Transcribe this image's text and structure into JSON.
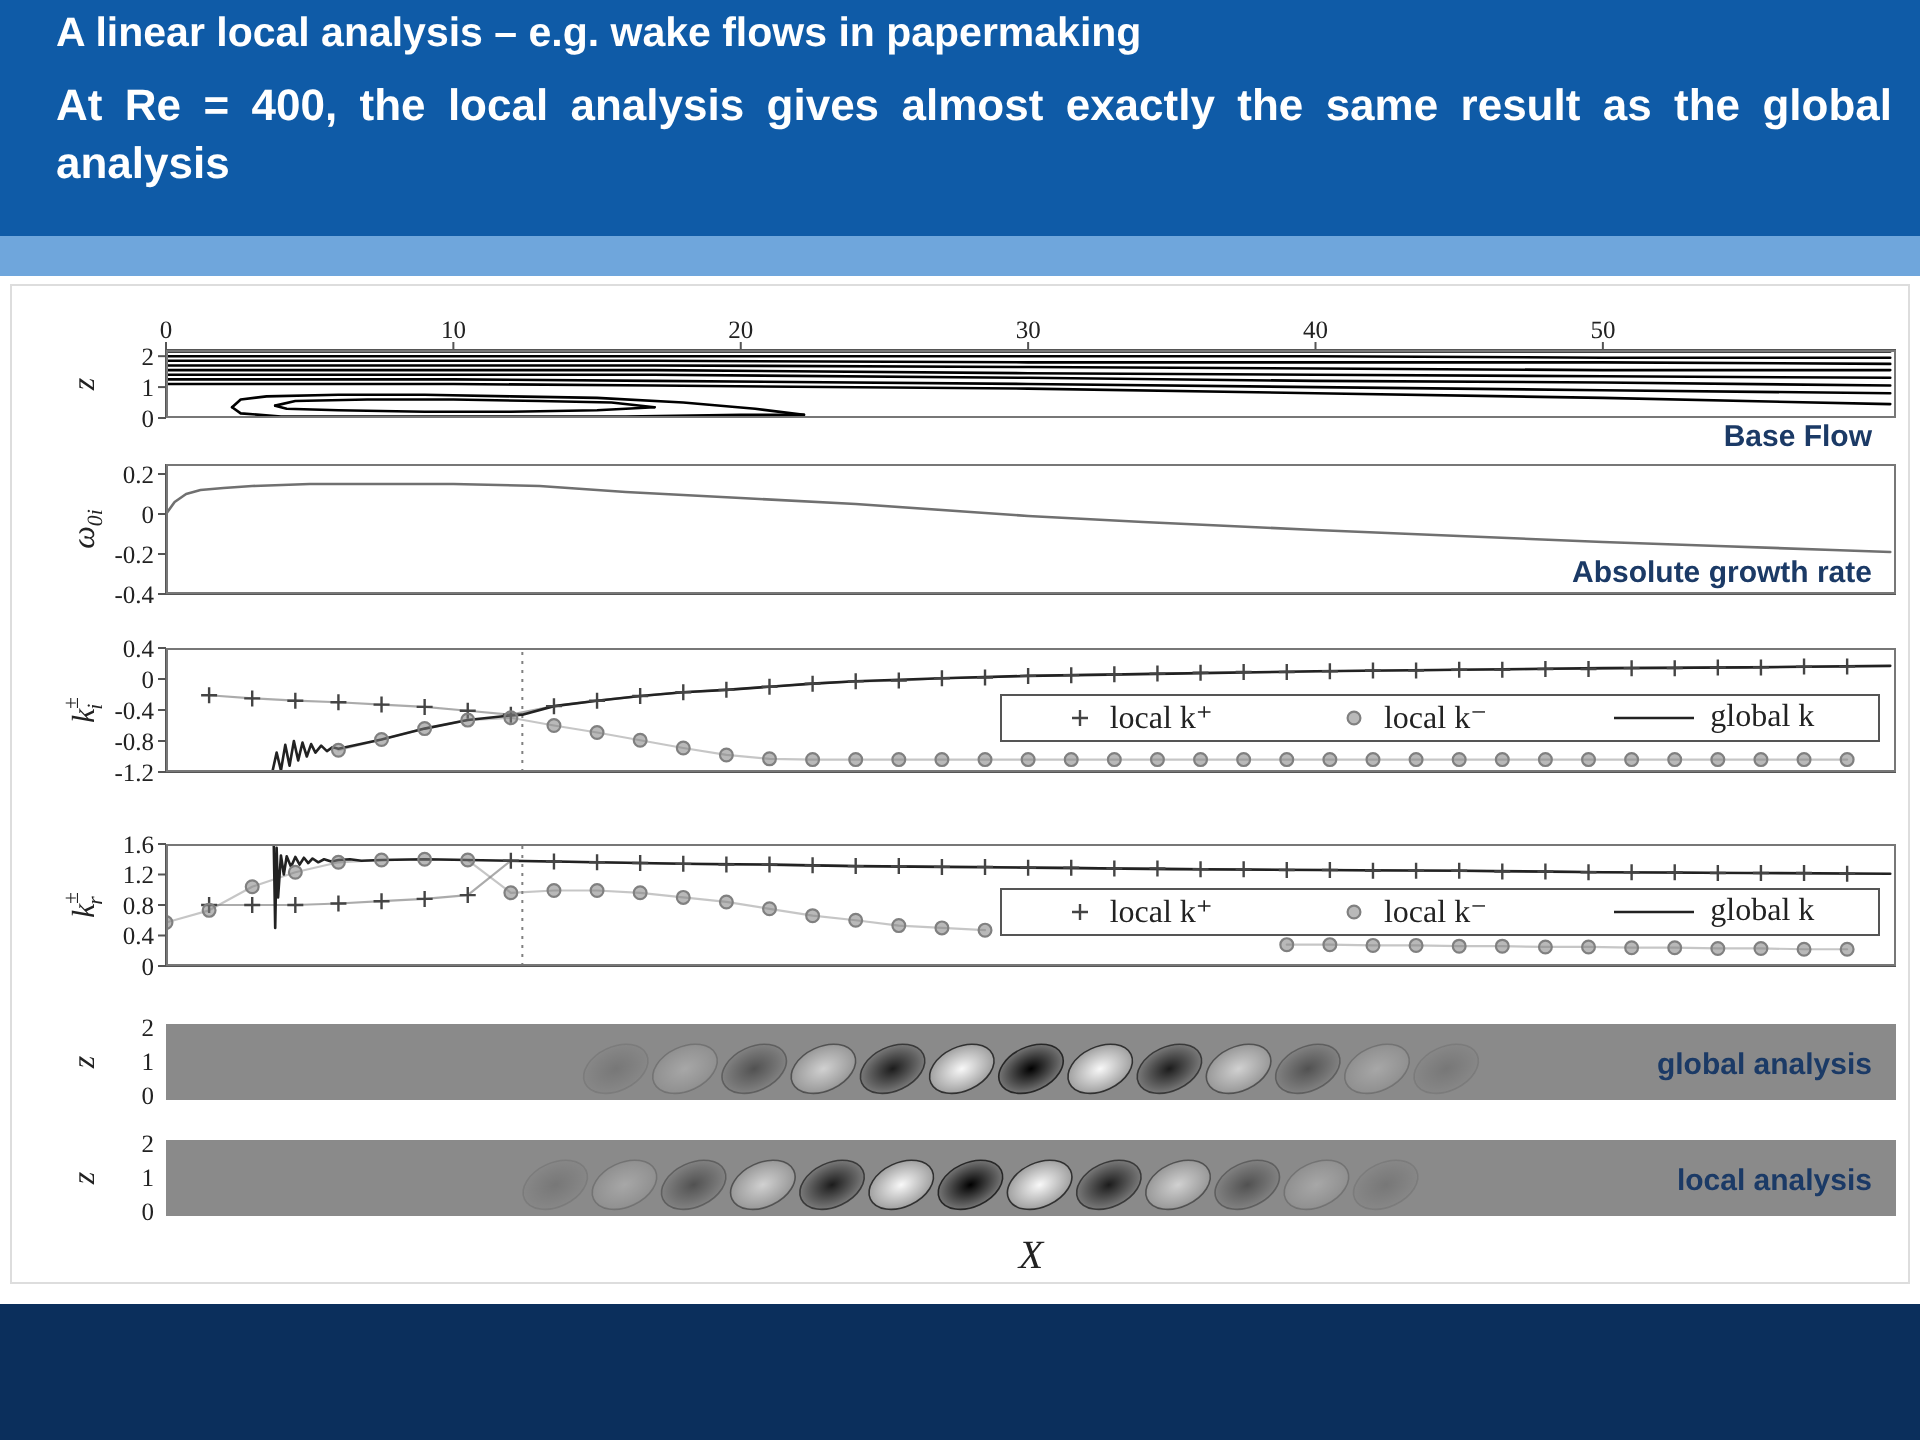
{
  "chart_data": [
    {
      "type": "line",
      "title": "A linear local analysis – e.g. wake flows in papermaking",
      "subtitle": "At Re = 400, the local analysis gives almost exactly the same result as the global analysis",
      "annotations": [
        "Base Flow"
      ],
      "ylabel": "z",
      "xlim": [
        0,
        60.2
      ],
      "xticks": [
        0,
        10,
        20,
        30,
        40,
        50
      ],
      "ylim": [
        0,
        2.2
      ],
      "yticks": [
        0,
        1,
        2
      ],
      "series": [
        {
          "color": "#000000",
          "x": [
            0,
            10,
            17,
            30,
            40,
            50,
            60
          ],
          "values": [
            1.1,
            1.1,
            1.05,
            0.95,
            0.8,
            0.65,
            0.45
          ]
        },
        {
          "color": "#000000",
          "x": [
            0,
            10,
            17,
            30,
            40,
            50,
            60
          ],
          "values": [
            1.25,
            1.25,
            1.2,
            1.1,
            1.0,
            0.9,
            0.8
          ]
        },
        {
          "color": "#000000",
          "x": [
            0,
            10,
            17,
            30,
            40,
            50,
            60
          ],
          "values": [
            1.4,
            1.4,
            1.4,
            1.3,
            1.2,
            1.15,
            1.05
          ]
        },
        {
          "color": "#000000",
          "x": [
            0,
            10,
            17,
            30,
            40,
            50,
            60
          ],
          "values": [
            1.55,
            1.55,
            1.55,
            1.45,
            1.4,
            1.35,
            1.3
          ]
        },
        {
          "color": "#000000",
          "x": [
            0,
            10,
            17,
            30,
            40,
            50,
            60
          ],
          "values": [
            1.7,
            1.7,
            1.7,
            1.65,
            1.6,
            1.55,
            1.55
          ]
        },
        {
          "color": "#000000",
          "x": [
            0,
            10,
            17,
            30,
            40,
            50,
            60
          ],
          "values": [
            1.85,
            1.85,
            1.85,
            1.8,
            1.8,
            1.8,
            1.75
          ]
        },
        {
          "color": "#000000",
          "x": [
            0,
            10,
            17,
            30,
            40,
            50,
            60
          ],
          "values": [
            2.0,
            2.0,
            2.0,
            2.0,
            2.0,
            1.95,
            1.95
          ]
        },
        {
          "color": "#000000",
          "x": [
            0,
            10,
            17,
            30,
            40,
            50,
            60
          ],
          "values": [
            2.15,
            2.15,
            2.15,
            2.15,
            2.15,
            2.15,
            2.15
          ]
        },
        {
          "color": "#000000",
          "x": [
            2.3,
            2.6,
            3.5,
            6,
            9,
            12,
            15,
            18,
            20.5,
            22.2
          ],
          "values": [
            0.35,
            0.6,
            0.7,
            0.75,
            0.75,
            0.7,
            0.65,
            0.5,
            0.3,
            0.1
          ]
        },
        {
          "color": "#000000",
          "x": [
            2.3,
            2.6,
            4,
            8,
            12,
            16,
            20,
            22.2
          ],
          "values": [
            0.35,
            0.15,
            0.05,
            0.05,
            0.05,
            0.05,
            0.1,
            0.1
          ]
        },
        {
          "color": "#000000",
          "x": [
            3.8,
            4.5,
            7,
            10,
            13,
            15.5,
            17
          ],
          "values": [
            0.4,
            0.55,
            0.6,
            0.6,
            0.55,
            0.5,
            0.35
          ]
        },
        {
          "color": "#000000",
          "x": [
            3.8,
            4.2,
            6,
            9,
            12,
            15,
            17
          ],
          "values": [
            0.4,
            0.3,
            0.25,
            0.2,
            0.2,
            0.25,
            0.35
          ]
        }
      ]
    },
    {
      "type": "line",
      "annotations": [
        "Absolute growth rate"
      ],
      "ylabel": "ω$_{0i}$",
      "xlim": [
        0,
        60.2
      ],
      "xticks": [
        0,
        10,
        20,
        30,
        40,
        50
      ],
      "ylim": [
        -0.4,
        0.25
      ],
      "yticks": [
        -0.4,
        -0.2,
        0,
        0.2
      ],
      "tick_labels": "y",
      "color": "#707070",
      "x": [
        0,
        0.3,
        0.7,
        1.2,
        2,
        3,
        5,
        8,
        10,
        13,
        16,
        20,
        24,
        28,
        30,
        34,
        37,
        40,
        45,
        50,
        54,
        58,
        60
      ],
      "values": [
        0,
        0.06,
        0.1,
        0.12,
        0.13,
        0.14,
        0.15,
        0.15,
        0.15,
        0.14,
        0.11,
        0.08,
        0.05,
        0.01,
        -0.01,
        -0.04,
        -0.06,
        -0.08,
        -0.11,
        -0.14,
        -0.16,
        -0.18,
        -0.19
      ]
    },
    {
      "type": "line",
      "ylabel": "k$^{±}$$_{i}$",
      "xlim": [
        0,
        60.2
      ],
      "xticks": [
        0,
        10,
        20,
        30,
        40,
        50
      ],
      "ylim": [
        -1.2,
        0.4
      ],
      "yticks": [
        -1.2,
        -0.8,
        -0.4,
        0,
        0.4
      ],
      "tick_labels": "y",
      "legend": "bottom right",
      "ref_lines": [
        {
          "axis": "x",
          "value": 12.4,
          "line_style": "dotted",
          "color": "#808080"
        }
      ],
      "series": [
        {
          "name": "local k⁺",
          "color": "#444444",
          "marker": "cross",
          "x": [
            1.5,
            3,
            4.5,
            6,
            7.5,
            9,
            10.5,
            12,
            13.5,
            15,
            16.5,
            18,
            19.5,
            21,
            22.5,
            24,
            25.5,
            27,
            28.5,
            30,
            31.5,
            33,
            34.5,
            36,
            37.5,
            39,
            40.5,
            42,
            43.5,
            45,
            46.5,
            48,
            49.5,
            51,
            52.5,
            54,
            55.5,
            57,
            58.5
          ],
          "values": [
            -0.21,
            -0.25,
            -0.28,
            -0.3,
            -0.33,
            -0.36,
            -0.41,
            -0.46,
            -0.35,
            -0.28,
            -0.22,
            -0.17,
            -0.14,
            -0.1,
            -0.06,
            -0.03,
            -0.02,
            0.01,
            0.02,
            0.04,
            0.05,
            0.06,
            0.07,
            0.08,
            0.09,
            0.09,
            0.1,
            0.11,
            0.11,
            0.12,
            0.12,
            0.13,
            0.13,
            0.14,
            0.14,
            0.15,
            0.15,
            0.16,
            0.16
          ]
        },
        {
          "name": "local k⁻",
          "color": "#808080",
          "marker": "circle",
          "x": [
            6,
            7.5,
            9,
            10.5,
            12,
            13.5,
            15,
            16.5,
            18,
            19.5,
            21,
            22.5,
            24,
            25.5,
            27,
            28.5,
            30,
            31.5,
            33,
            34.5,
            36,
            37.5,
            39,
            40.5,
            42,
            43.5,
            45,
            46.5,
            48,
            49.5,
            51,
            52.5,
            54,
            55.5,
            57,
            58.5
          ],
          "values": [
            -0.92,
            -0.78,
            -0.64,
            -0.53,
            -0.5,
            -0.6,
            -0.69,
            -0.79,
            -0.89,
            -0.98,
            -1.03,
            -1.04,
            -1.04,
            -1.04,
            -1.04,
            -1.04,
            -1.04,
            -1.04,
            -1.04,
            -1.04,
            -1.04,
            -1.04,
            -1.04,
            -1.04,
            -1.04,
            -1.04,
            -1.04,
            -1.04,
            -1.04,
            -1.04,
            -1.04,
            -1.04,
            -1.04,
            -1.04,
            -1.04,
            -1.04
          ]
        },
        {
          "name": "global k",
          "color": "#222222",
          "marker": "none",
          "x": [
            3.7,
            3.85,
            4.0,
            4.15,
            4.3,
            4.45,
            4.6,
            4.75,
            4.9,
            5.05,
            5.2,
            5.4,
            5.6,
            5.8,
            6,
            7.5,
            9,
            10.5,
            12,
            12.4,
            13.5,
            15,
            16.5,
            18,
            19.5,
            21,
            22.5,
            24,
            27,
            30,
            35,
            40,
            45,
            50,
            55,
            60
          ],
          "values": [
            -1.2,
            -0.95,
            -1.18,
            -0.85,
            -1.12,
            -0.8,
            -1.05,
            -0.82,
            -1.0,
            -0.84,
            -0.95,
            -0.86,
            -0.93,
            -0.88,
            -0.9,
            -0.78,
            -0.64,
            -0.53,
            -0.47,
            -0.46,
            -0.35,
            -0.28,
            -0.22,
            -0.17,
            -0.14,
            -0.1,
            -0.06,
            -0.03,
            0.01,
            0.04,
            0.07,
            0.1,
            0.12,
            0.14,
            0.15,
            0.17
          ]
        }
      ]
    },
    {
      "type": "line",
      "ylabel": "k$^{±}$$_{r}$",
      "xlim": [
        0,
        60.2
      ],
      "xticks": [
        0,
        10,
        20,
        30,
        40,
        50
      ],
      "ylim": [
        0,
        1.6
      ],
      "yticks": [
        0,
        0.4,
        0.8,
        1.2,
        1.6
      ],
      "tick_labels": "y",
      "legend": "bottom right",
      "ref_lines": [
        {
          "axis": "x",
          "value": 12.4,
          "line_style": "dotted",
          "color": "#808080"
        }
      ],
      "series": [
        {
          "name": "local k⁺",
          "color": "#444444",
          "marker": "cross",
          "x": [
            1.5,
            3,
            4.5,
            6,
            7.5,
            9,
            10.5,
            12,
            13.5,
            15,
            16.5,
            18,
            19.5,
            21,
            22.5,
            24,
            25.5,
            27,
            28.5,
            30,
            31.5,
            33,
            34.5,
            36,
            37.5,
            39,
            40.5,
            42,
            43.5,
            45,
            46.5,
            48,
            49.5,
            51,
            52.5,
            54,
            55.5,
            57,
            58.5
          ],
          "values": [
            0.8,
            0.8,
            0.8,
            0.82,
            0.85,
            0.88,
            0.93,
            1.38,
            1.37,
            1.36,
            1.35,
            1.34,
            1.33,
            1.33,
            1.32,
            1.31,
            1.31,
            1.3,
            1.3,
            1.29,
            1.29,
            1.28,
            1.28,
            1.27,
            1.27,
            1.26,
            1.26,
            1.25,
            1.25,
            1.25,
            1.24,
            1.24,
            1.23,
            1.23,
            1.23,
            1.22,
            1.22,
            1.22,
            1.21
          ]
        },
        {
          "name": "local k⁻",
          "color": "#808080",
          "marker": "circle",
          "x": [
            0,
            1.5,
            3,
            4.5,
            6,
            7.5,
            9,
            10.5,
            12,
            13.5,
            15,
            16.5,
            18,
            19.5,
            21,
            22.5,
            24,
            25.5,
            27,
            28.5,
            30,
            31.5,
            33,
            34.5,
            36,
            37.5,
            39,
            40.5,
            42,
            43.5,
            45,
            46.5,
            48,
            49.5,
            51,
            52.5,
            54,
            55.5,
            57,
            58.5
          ],
          "values": [
            0.57,
            0.73,
            1.04,
            1.23,
            1.36,
            1.39,
            1.4,
            1.39,
            0.96,
            0.99,
            0.99,
            0.96,
            0.9,
            0.84,
            0.75,
            0.66,
            0.6,
            0.53,
            0.5,
            0.47,
            null,
            null,
            null,
            null,
            null,
            null,
            0.28,
            0.28,
            0.27,
            0.27,
            0.26,
            0.26,
            0.25,
            0.25,
            0.24,
            0.24,
            0.23,
            0.23,
            0.22,
            0.22
          ]
        },
        {
          "name": "global k",
          "color": "#222222",
          "marker": "none",
          "x": [
            3.75,
            3.8,
            3.85,
            3.9,
            4.0,
            4.1,
            4.2,
            4.35,
            4.5,
            4.65,
            4.8,
            4.95,
            5.1,
            5.3,
            5.5,
            5.75,
            6,
            6.4,
            6.8,
            7.5,
            9,
            10.5,
            12,
            13.5,
            15,
            18,
            21,
            24,
            27,
            30,
            35,
            40,
            45,
            50,
            55,
            60
          ],
          "values": [
            1.6,
            0.5,
            1.55,
            0.9,
            1.45,
            1.2,
            1.44,
            1.3,
            1.43,
            1.33,
            1.42,
            1.35,
            1.41,
            1.36,
            1.4,
            1.37,
            1.39,
            1.4,
            1.38,
            1.39,
            1.4,
            1.39,
            1.38,
            1.37,
            1.36,
            1.34,
            1.33,
            1.31,
            1.3,
            1.29,
            1.27,
            1.26,
            1.25,
            1.23,
            1.22,
            1.21
          ]
        }
      ]
    },
    {
      "type": "other",
      "annotations": [
        "global analysis",
        "2",
        "1",
        "0"
      ],
      "ylabel": "z"
    },
    {
      "type": "other",
      "annotations": [
        "local analysis",
        "2",
        "1",
        "0"
      ],
      "ylabel": "z",
      "xlabel": "X"
    }
  ]
}
